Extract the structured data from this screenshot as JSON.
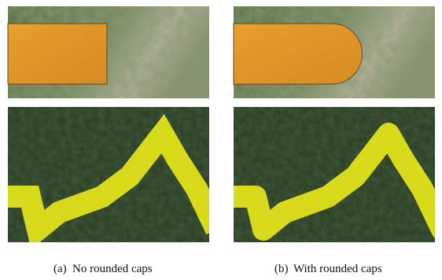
{
  "figure": {
    "subfigures": [
      {
        "label": "(a)",
        "caption": "No rounded caps"
      },
      {
        "label": "(b)",
        "caption": "With rounded caps"
      }
    ]
  }
}
